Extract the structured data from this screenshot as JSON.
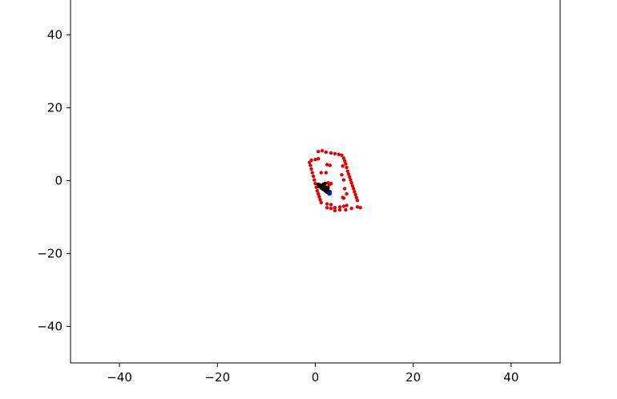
{
  "chart_data": {
    "type": "scatter",
    "title": "",
    "xlabel": "",
    "ylabel": "",
    "xlim": [
      -50,
      50
    ],
    "ylim": [
      -50,
      50
    ],
    "grid": false,
    "x_ticks": [
      -40,
      -20,
      0,
      20,
      40
    ],
    "x_tick_labels": [
      "−40",
      "−20",
      "0",
      "20",
      "40"
    ],
    "y_ticks": [
      -40,
      -20,
      0,
      20,
      40
    ],
    "y_tick_labels": [
      "−40",
      "−20",
      "0",
      "20",
      "40"
    ],
    "series": [
      {
        "color": "#e00000",
        "marker": "circle",
        "points": [
          [
            -1.2,
            5.0
          ],
          [
            -1.0,
            4.2
          ],
          [
            -0.8,
            3.2
          ],
          [
            -0.6,
            2.2
          ],
          [
            -0.4,
            1.2
          ],
          [
            -0.2,
            0.2
          ],
          [
            0.0,
            -0.8
          ],
          [
            0.2,
            -1.8
          ],
          [
            0.4,
            -2.8
          ],
          [
            0.6,
            -3.6
          ],
          [
            0.8,
            -4.4
          ],
          [
            1.0,
            -5.2
          ],
          [
            1.2,
            -6.0
          ],
          [
            -0.8,
            5.6
          ],
          [
            0.0,
            5.8
          ],
          [
            0.6,
            6.0
          ],
          [
            0.6,
            8.0
          ],
          [
            1.4,
            8.2
          ],
          [
            2.2,
            7.8
          ],
          [
            3.2,
            7.6
          ],
          [
            4.0,
            7.4
          ],
          [
            4.8,
            7.2
          ],
          [
            5.4,
            7.0
          ],
          [
            5.8,
            6.2
          ],
          [
            6.0,
            5.4
          ],
          [
            6.2,
            4.6
          ],
          [
            6.4,
            3.6
          ],
          [
            6.6,
            2.6
          ],
          [
            6.8,
            1.8
          ],
          [
            7.0,
            1.0
          ],
          [
            7.2,
            0.2
          ],
          [
            7.4,
            -0.6
          ],
          [
            7.6,
            -1.4
          ],
          [
            7.8,
            -2.2
          ],
          [
            8.0,
            -3.0
          ],
          [
            8.2,
            -3.8
          ],
          [
            8.4,
            -4.6
          ],
          [
            8.6,
            -5.4
          ],
          [
            2.4,
            -7.4
          ],
          [
            3.2,
            -7.6
          ],
          [
            4.0,
            -7.4
          ],
          [
            5.0,
            -7.2
          ],
          [
            5.8,
            -7.0
          ],
          [
            6.4,
            -6.8
          ],
          [
            4.0,
            -8.2
          ],
          [
            5.0,
            -8.0
          ],
          [
            6.2,
            -8.0
          ],
          [
            7.4,
            -7.6
          ],
          [
            8.6,
            -7.2
          ],
          [
            9.2,
            -7.4
          ],
          [
            2.4,
            -6.4
          ],
          [
            3.2,
            -6.6
          ],
          [
            1.2,
            2.2
          ],
          [
            2.2,
            2.2
          ],
          [
            2.4,
            4.4
          ],
          [
            3.0,
            4.2
          ],
          [
            5.6,
            4.0
          ],
          [
            5.4,
            1.6
          ],
          [
            5.8,
            0.2
          ],
          [
            6.0,
            -2.2
          ],
          [
            6.4,
            -3.6
          ],
          [
            5.6,
            -4.6
          ],
          [
            5.8,
            -4.8
          ],
          [
            2.8,
            -1.2
          ],
          [
            3.2,
            -0.8
          ],
          [
            2.6,
            -0.6
          ]
        ]
      },
      {
        "color": "#000000",
        "marker": "circle",
        "points": [
          [
            0.6,
            -1.0
          ],
          [
            1.0,
            -1.2
          ],
          [
            1.4,
            -1.4
          ],
          [
            1.8,
            -1.6
          ],
          [
            2.2,
            -1.8
          ],
          [
            2.6,
            -2.0
          ],
          [
            0.8,
            -1.6
          ],
          [
            1.2,
            -2.0
          ],
          [
            1.6,
            -2.4
          ],
          [
            2.0,
            -2.8
          ],
          [
            2.4,
            -3.2
          ],
          [
            2.8,
            -3.4
          ],
          [
            2.2,
            -2.4
          ],
          [
            2.6,
            -2.8
          ],
          [
            3.0,
            -3.0
          ],
          [
            1.6,
            -1.0
          ],
          [
            2.0,
            -0.8
          ]
        ]
      },
      {
        "color": "#1020a0",
        "marker": "circle",
        "points": [
          [
            2.9,
            -3.5
          ]
        ]
      }
    ]
  }
}
